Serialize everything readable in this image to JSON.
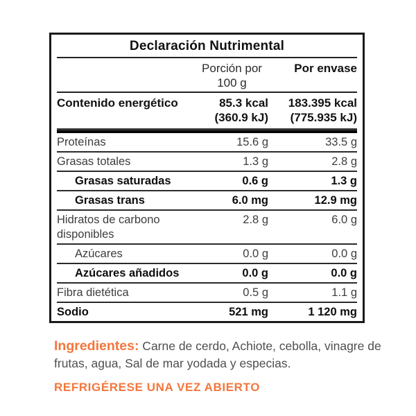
{
  "label": {
    "title": "Declaración Nutrimental",
    "columns": {
      "per_portion_line1": "Porción por",
      "per_portion_line2": "100 g",
      "per_package": "Por envase"
    },
    "energy": {
      "label": "Contenido energético",
      "per100g_kcal": "85.3 kcal",
      "per100g_kj": "(360.9 kJ)",
      "package_kcal": "183.395 kcal",
      "package_kj": "(775.935 kJ)"
    },
    "rows": [
      {
        "label": "Proteínas",
        "per100g": "15.6 g",
        "package": "33.5 g",
        "bold": false,
        "indent": false
      },
      {
        "label": "Grasas totales",
        "per100g": "1.3 g",
        "package": "2.8 g",
        "bold": false,
        "indent": false
      },
      {
        "label": "Grasas saturadas",
        "per100g": "0.6 g",
        "package": "1.3 g",
        "bold": true,
        "indent": true
      },
      {
        "label": "Grasas trans",
        "per100g": "6.0 mg",
        "package": "12.9 mg",
        "bold": true,
        "indent": true
      },
      {
        "label": "Hidratos de carbono disponibles",
        "per100g": "2.8 g",
        "package": "6.0 g",
        "bold": false,
        "indent": false
      },
      {
        "label": "Azúcares",
        "per100g": "0.0 g",
        "package": "0.0 g",
        "bold": false,
        "indent": true
      },
      {
        "label": "Azúcares añadidos",
        "per100g": "0.0 g",
        "package": "0.0 g",
        "bold": true,
        "indent": true
      },
      {
        "label": "Fibra dietética",
        "per100g": "0.5 g",
        "package": "1.1 g",
        "bold": false,
        "indent": false
      },
      {
        "label": "Sodio",
        "per100g": "521 mg",
        "package": "1 120 mg",
        "bold": true,
        "indent": false
      }
    ]
  },
  "ingredients": {
    "heading": "Ingredientes:",
    "text": " Carne de cerdo, Achiote, cebolla, vinagre de frutas, agua, Sal de mar yodada y especias."
  },
  "storage_note": "REFRIGÉRESE UNA VEZ ABIERTO",
  "colors": {
    "accent_orange": "#F4763B",
    "text_dark": "#111111",
    "text_gray": "#3d3d3d",
    "border_black": "#1a1a1a"
  }
}
